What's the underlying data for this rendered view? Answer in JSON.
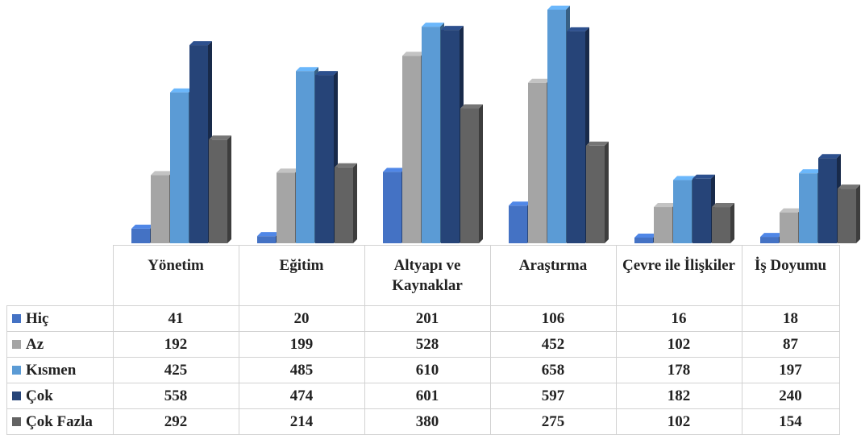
{
  "chart_data": {
    "type": "bar",
    "title": "",
    "xlabel": "",
    "ylabel": "",
    "ylim": [
      0,
      700
    ],
    "grid": false,
    "legend": "table",
    "categories": [
      "Yönetim",
      "Eğitim",
      "Altyapı ve Kaynaklar",
      "Araştırma",
      "Çevre ile İlişkiler",
      "İş Doyumu"
    ],
    "series": [
      {
        "name": "Hiç",
        "color": "#4472c4",
        "values": [
          41,
          20,
          201,
          106,
          16,
          18
        ]
      },
      {
        "name": "Az",
        "color": "#a5a5a5",
        "values": [
          192,
          199,
          528,
          452,
          102,
          87
        ]
      },
      {
        "name": "Kısmen",
        "color": "#5b9bd5",
        "values": [
          425,
          485,
          610,
          658,
          178,
          197
        ]
      },
      {
        "name": "Çok",
        "color": "#264478",
        "values": [
          558,
          474,
          601,
          597,
          182,
          240
        ]
      },
      {
        "name": "Çok Fazla",
        "color": "#636363",
        "values": [
          292,
          214,
          380,
          275,
          102,
          154
        ]
      }
    ]
  }
}
